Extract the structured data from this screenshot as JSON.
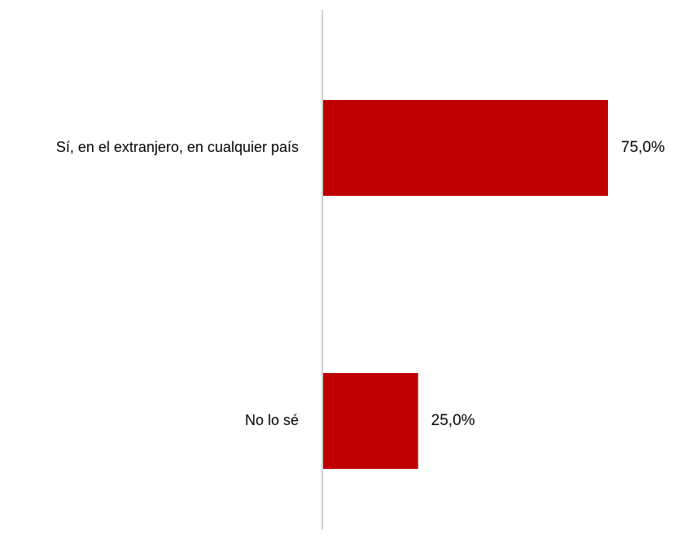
{
  "chart_data": {
    "type": "bar",
    "orientation": "horizontal",
    "categories": [
      "Sí, en el extranjero, en cualquier país",
      "No lo sé"
    ],
    "values": [
      75.0,
      25.0
    ],
    "data_labels": [
      "75,0%",
      "25,0%"
    ],
    "xlim": [
      0,
      100
    ],
    "title": "",
    "xlabel": "",
    "ylabel": "",
    "grid": false,
    "legend": "none",
    "colors": {
      "bar": "#C00000",
      "axis": "#D0D0D0",
      "text": "#000000"
    }
  }
}
